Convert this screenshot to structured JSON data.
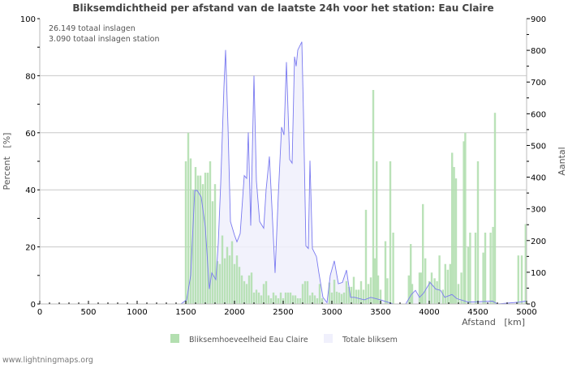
{
  "chart_data": {
    "type": "bar",
    "title": "Bliksemdichtheid per afstand van de laatste 24h voor het station: Eau Claire",
    "info": [
      "26.149 totaal inslagen",
      "3.090 totaal inslagen station"
    ],
    "xlabel": "Afstand   [km]",
    "ylabel": "Percent   [%]",
    "y2label": "Aantal",
    "xlim": [
      0,
      5000
    ],
    "ylim": [
      0,
      100
    ],
    "y2lim": [
      0,
      900
    ],
    "xticks": [
      "0",
      "500",
      "1000",
      "1500",
      "2000",
      "2500",
      "3000",
      "3500",
      "4000",
      "4500",
      "5000"
    ],
    "yticks": [
      "0",
      "20",
      "40",
      "60",
      "80",
      "100"
    ],
    "y2ticks": [
      "0",
      "100",
      "200",
      "300",
      "400",
      "500",
      "600",
      "700",
      "800",
      "900"
    ],
    "grid": true,
    "legend_position": "bottom",
    "series": [
      {
        "name": "Bliksemhoeveelheid Eau Claire",
        "axis": "left",
        "kind": "bar",
        "color": "#b3dfb0",
        "points": [
          [
            1500,
            50
          ],
          [
            1525,
            60
          ],
          [
            1550,
            51
          ],
          [
            1575,
            40
          ],
          [
            1600,
            48
          ],
          [
            1625,
            45
          ],
          [
            1650,
            45
          ],
          [
            1675,
            42
          ],
          [
            1700,
            46
          ],
          [
            1725,
            46
          ],
          [
            1750,
            50
          ],
          [
            1775,
            36
          ],
          [
            1800,
            42
          ],
          [
            1825,
            15
          ],
          [
            1850,
            14
          ],
          [
            1875,
            24
          ],
          [
            1900,
            16
          ],
          [
            1925,
            20
          ],
          [
            1950,
            17
          ],
          [
            1975,
            22
          ],
          [
            2000,
            14
          ],
          [
            2025,
            17
          ],
          [
            2050,
            13
          ],
          [
            2075,
            10
          ],
          [
            2100,
            8
          ],
          [
            2125,
            7
          ],
          [
            2150,
            10
          ],
          [
            2175,
            11
          ],
          [
            2200,
            4
          ],
          [
            2225,
            5
          ],
          [
            2250,
            4
          ],
          [
            2275,
            3
          ],
          [
            2300,
            7
          ],
          [
            2325,
            8
          ],
          [
            2350,
            3
          ],
          [
            2375,
            2
          ],
          [
            2400,
            4
          ],
          [
            2425,
            3
          ],
          [
            2450,
            2
          ],
          [
            2475,
            4
          ],
          [
            2500,
            2
          ],
          [
            2525,
            4
          ],
          [
            2550,
            4
          ],
          [
            2575,
            4
          ],
          [
            2600,
            3
          ],
          [
            2625,
            3
          ],
          [
            2650,
            2
          ],
          [
            2675,
            2
          ],
          [
            2700,
            7
          ],
          [
            2725,
            8
          ],
          [
            2750,
            8
          ],
          [
            2775,
            3
          ],
          [
            2800,
            4
          ],
          [
            2825,
            3
          ],
          [
            2850,
            2
          ],
          [
            2875,
            7
          ],
          [
            2900,
            2
          ],
          [
            2975,
            7.5
          ],
          [
            3000,
            4
          ],
          [
            3025,
            8.5
          ],
          [
            3050,
            4.3
          ],
          [
            3075,
            4
          ],
          [
            3100,
            3.5
          ],
          [
            3125,
            4
          ],
          [
            3150,
            8
          ],
          [
            3175,
            6
          ],
          [
            3200,
            6
          ],
          [
            3225,
            9.5
          ],
          [
            3250,
            5
          ],
          [
            3275,
            5
          ],
          [
            3300,
            8
          ],
          [
            3325,
            5
          ],
          [
            3350,
            33
          ],
          [
            3375,
            7
          ],
          [
            3400,
            9.3
          ],
          [
            3425,
            75
          ],
          [
            3440,
            16
          ],
          [
            3460,
            50
          ],
          [
            3475,
            10
          ],
          [
            3500,
            5
          ],
          [
            3550,
            22
          ],
          [
            3570,
            9
          ],
          [
            3600,
            50
          ],
          [
            3630,
            25
          ],
          [
            3790,
            10
          ],
          [
            3810,
            21
          ],
          [
            3825,
            7
          ],
          [
            3900,
            11
          ],
          [
            3915,
            11
          ],
          [
            3935,
            35
          ],
          [
            3960,
            16
          ],
          [
            4000,
            8
          ],
          [
            4025,
            11
          ],
          [
            4055,
            9
          ],
          [
            4080,
            8
          ],
          [
            4105,
            17
          ],
          [
            4140,
            5
          ],
          [
            4165,
            14
          ],
          [
            4190,
            12
          ],
          [
            4215,
            14
          ],
          [
            4235,
            53
          ],
          [
            4255,
            48
          ],
          [
            4275,
            44
          ],
          [
            4300,
            7
          ],
          [
            4330,
            11
          ],
          [
            4355,
            57
          ],
          [
            4370,
            60
          ],
          [
            4400,
            20
          ],
          [
            4420,
            25
          ],
          [
            4475,
            25
          ],
          [
            4500,
            50
          ],
          [
            4555,
            18
          ],
          [
            4575,
            25
          ],
          [
            4630,
            25
          ],
          [
            4655,
            27
          ],
          [
            4675,
            67
          ],
          [
            4915,
            17
          ],
          [
            4950,
            17
          ],
          [
            4990,
            28
          ]
        ]
      },
      {
        "name": "Totale bliksem",
        "axis": "right",
        "kind": "area",
        "color": "#f0f0fc",
        "line_color": "#7a7af0",
        "points": [
          [
            1450,
            0
          ],
          [
            1508,
            13
          ],
          [
            1550,
            90
          ],
          [
            1592,
            358
          ],
          [
            1617,
            358
          ],
          [
            1658,
            337
          ],
          [
            1700,
            243
          ],
          [
            1742,
            47
          ],
          [
            1767,
            98
          ],
          [
            1808,
            77
          ],
          [
            1833,
            192
          ],
          [
            1858,
            380
          ],
          [
            1892,
            686
          ],
          [
            1908,
            801
          ],
          [
            1933,
            558
          ],
          [
            1958,
            260
          ],
          [
            2000,
            217
          ],
          [
            2025,
            196
          ],
          [
            2058,
            222
          ],
          [
            2100,
            405
          ],
          [
            2125,
            396
          ],
          [
            2142,
            541
          ],
          [
            2167,
            247
          ],
          [
            2200,
            720
          ],
          [
            2225,
            388
          ],
          [
            2258,
            260
          ],
          [
            2300,
            239
          ],
          [
            2325,
            362
          ],
          [
            2358,
            465
          ],
          [
            2383,
            311
          ],
          [
            2417,
            98
          ],
          [
            2450,
            345
          ],
          [
            2483,
            558
          ],
          [
            2508,
            533
          ],
          [
            2533,
            763
          ],
          [
            2567,
            456
          ],
          [
            2592,
            444
          ],
          [
            2617,
            780
          ],
          [
            2633,
            750
          ],
          [
            2650,
            801
          ],
          [
            2692,
            827
          ],
          [
            2708,
            601
          ],
          [
            2733,
            183
          ],
          [
            2758,
            175
          ],
          [
            2775,
            452
          ],
          [
            2800,
            175
          ],
          [
            2842,
            149
          ],
          [
            2867,
            98
          ],
          [
            2908,
            21
          ],
          [
            2950,
            4
          ],
          [
            2983,
            90
          ],
          [
            3025,
            136
          ],
          [
            3067,
            64
          ],
          [
            3108,
            68
          ],
          [
            3150,
            107
          ],
          [
            3192,
            21
          ],
          [
            3233,
            21
          ],
          [
            3333,
            13
          ],
          [
            3400,
            21
          ],
          [
            3500,
            13
          ],
          [
            3633,
            0
          ],
          [
            3758,
            0
          ],
          [
            3817,
            30
          ],
          [
            3858,
            43
          ],
          [
            3900,
            21
          ],
          [
            3942,
            34
          ],
          [
            4008,
            68
          ],
          [
            4067,
            47
          ],
          [
            4117,
            43
          ],
          [
            4158,
            21
          ],
          [
            4233,
            30
          ],
          [
            4283,
            17
          ],
          [
            4400,
            6
          ],
          [
            4650,
            9
          ],
          [
            4700,
            0
          ],
          [
            4925,
            6
          ],
          [
            4992,
            9
          ]
        ]
      }
    ]
  },
  "footer": "www.lightningmaps.org"
}
